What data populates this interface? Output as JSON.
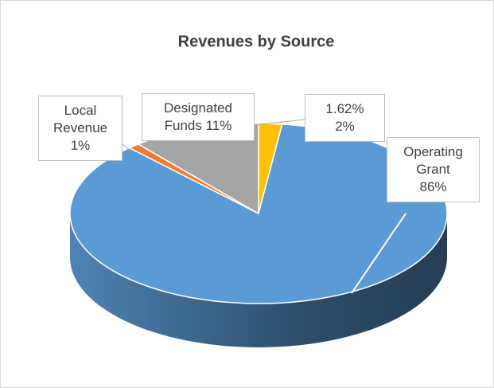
{
  "chart_data": {
    "type": "pie",
    "title": "Revenues by Source",
    "categories": [
      "1.62%",
      "Operating Grant",
      "Local Revenue",
      "Designated Funds"
    ],
    "values": [
      2,
      86,
      1,
      11
    ],
    "value_labels": [
      "2%",
      "86%",
      "1%",
      "11%"
    ],
    "colors": [
      "#ffc000",
      "#5b9bd5",
      "#ed7d31",
      "#a5a5a5"
    ]
  }
}
